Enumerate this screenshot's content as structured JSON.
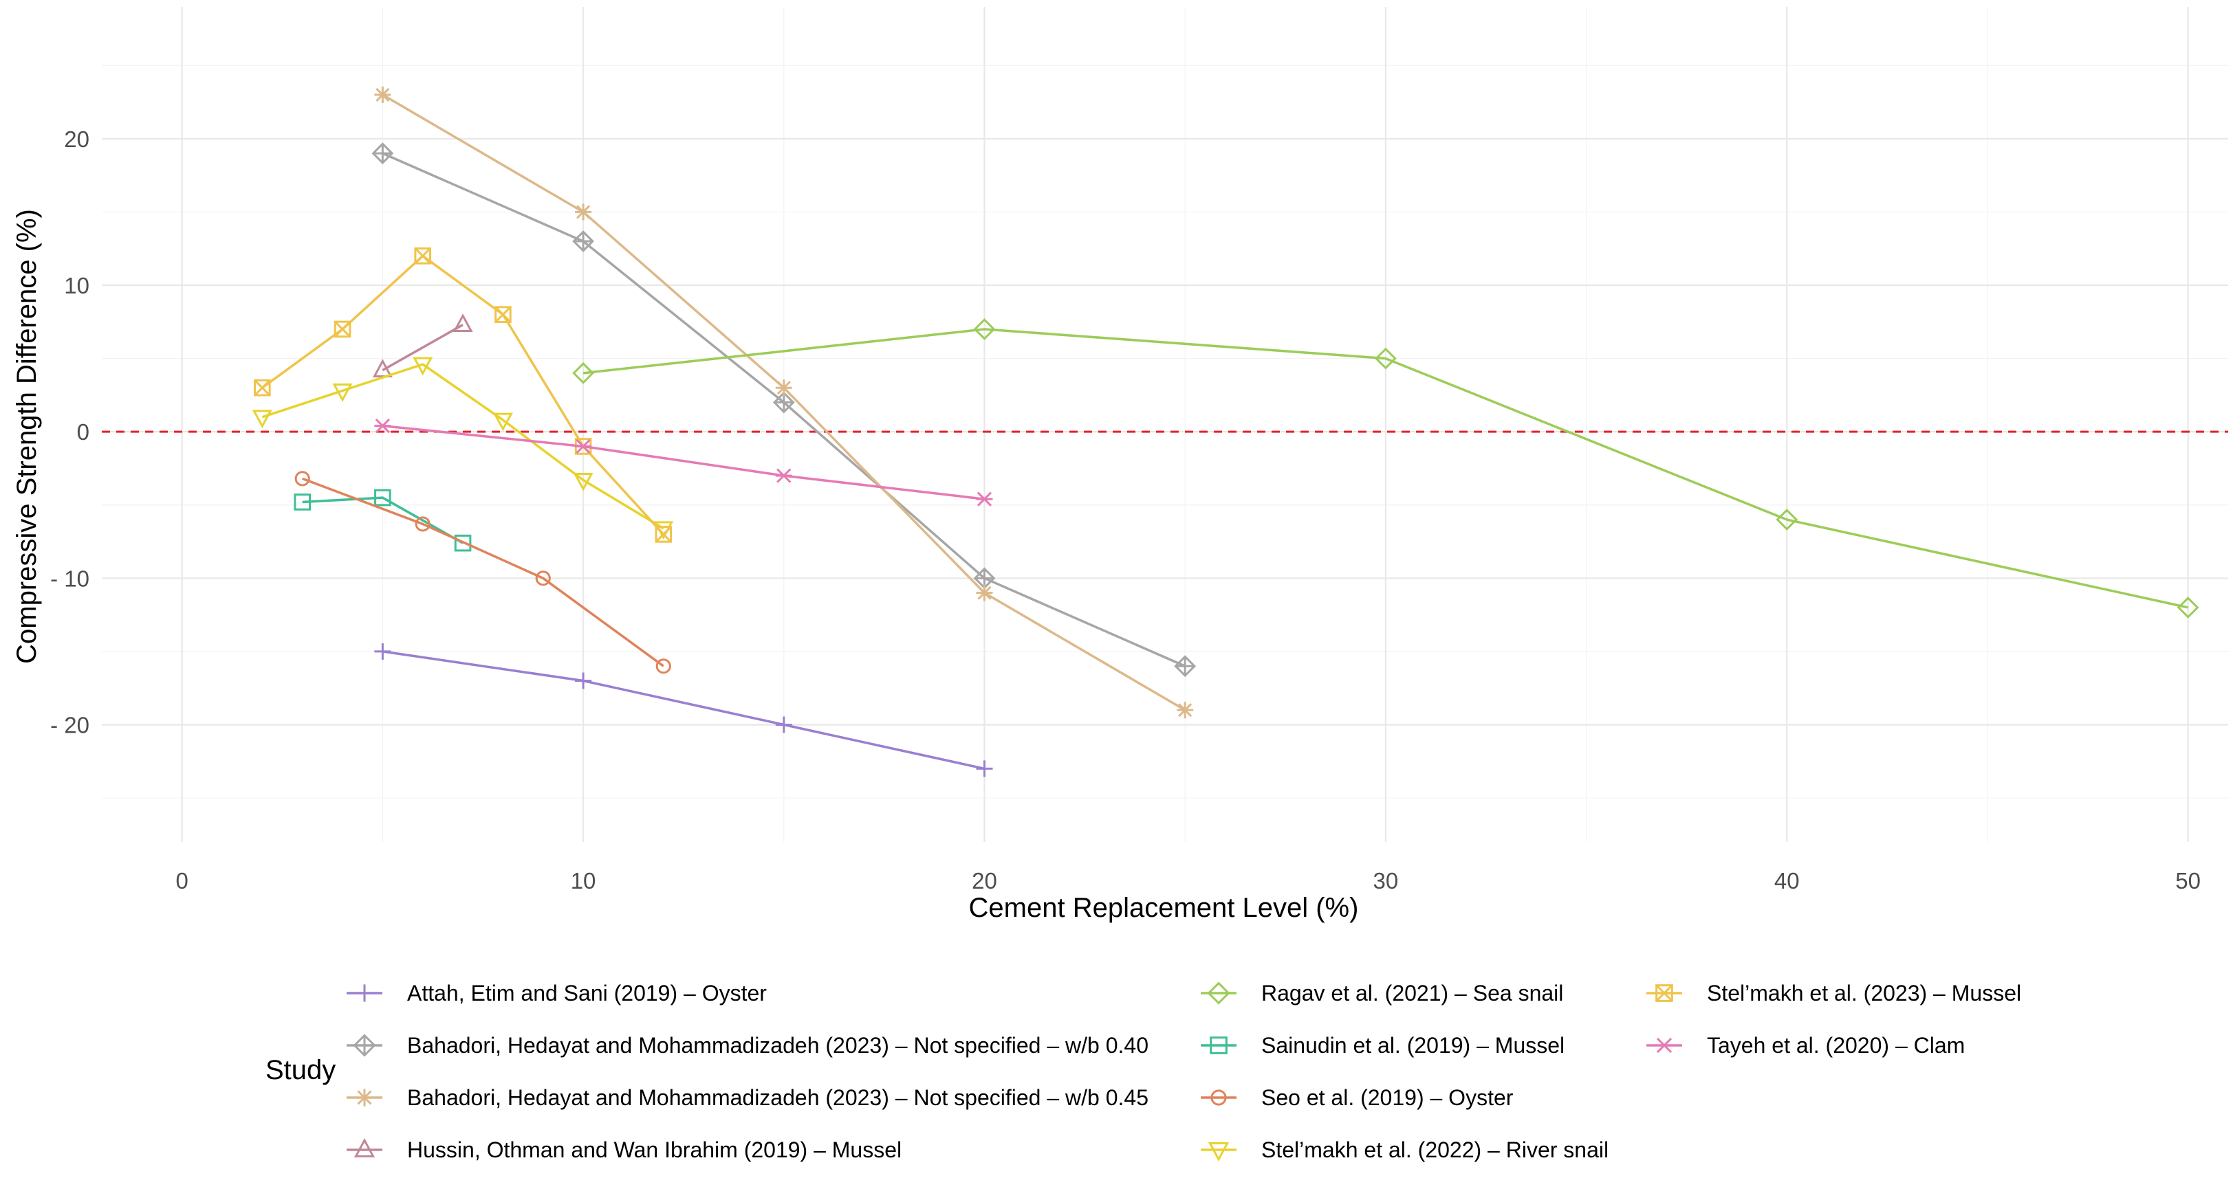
{
  "chart_data": {
    "type": "line",
    "xlabel": "Cement Replacement Level (%)",
    "ylabel": "Compressive Strength Difference (%)",
    "xlim": [
      -2,
      51
    ],
    "ylim": [
      -28,
      29
    ],
    "x_ticks": [
      0,
      10,
      20,
      30,
      40,
      50
    ],
    "x_tick_labels": [
      "0",
      "10",
      "20",
      "30",
      "40",
      "50"
    ],
    "y_ticks": [
      20,
      10,
      0,
      -10,
      -20
    ],
    "y_tick_labels": [
      "20",
      "10",
      "0",
      "- 10",
      "- 20"
    ],
    "grid": true,
    "reference_line": {
      "y": 0,
      "style": "dashed",
      "color": "#e8202a"
    },
    "legend_title": "Study",
    "legend_position": "bottom",
    "series": [
      {
        "name": "Attah, Etim and Sani (2019) – Oyster",
        "color": "#9a7fd0",
        "marker": "plus",
        "x": [
          5,
          10,
          15,
          20
        ],
        "y": [
          -15,
          -17,
          -20,
          -23
        ]
      },
      {
        "name": "Bahadori, Hedayat and Mohammadizadeh (2023) – Not specified – w/b 0.40",
        "color": "#a6a6a6",
        "marker": "diamond-plus",
        "x": [
          5,
          10,
          15,
          20,
          25
        ],
        "y": [
          19,
          13,
          2,
          -10,
          -16
        ]
      },
      {
        "name": "Bahadori, Hedayat and Mohammadizadeh (2023) – Not specified – w/b 0.45",
        "color": "#dcb98a",
        "marker": "asterisk",
        "x": [
          5,
          10,
          15,
          20,
          25
        ],
        "y": [
          23,
          15,
          3,
          -11,
          -19
        ]
      },
      {
        "name": "Hussin, Othman and Wan Ibrahim (2019) – Mussel",
        "color": "#c08896",
        "marker": "triangle",
        "x": [
          5,
          7
        ],
        "y": [
          4.2,
          7.3
        ]
      },
      {
        "name": "Ragav et al. (2021) – Sea snail",
        "color": "#9ccc58",
        "marker": "diamond",
        "x": [
          10,
          20,
          30,
          40,
          50
        ],
        "y": [
          4,
          7,
          5,
          -6,
          -12
        ]
      },
      {
        "name": "Sainudin et al. (2019) – Mussel",
        "color": "#3dbf96",
        "marker": "square",
        "x": [
          3,
          5,
          7
        ],
        "y": [
          -4.8,
          -4.5,
          -7.6
        ]
      },
      {
        "name": "Seo et al. (2019) – Oyster",
        "color": "#e0835a",
        "marker": "circle",
        "x": [
          3,
          6,
          9,
          12
        ],
        "y": [
          -3.2,
          -6.3,
          -10,
          -16
        ]
      },
      {
        "name": "Stel’makh et al. (2022) – River snail",
        "color": "#e6d32e",
        "marker": "triangle-down",
        "x": [
          2,
          4,
          6,
          8,
          10,
          12
        ],
        "y": [
          1,
          2.8,
          4.6,
          0.8,
          -3.3,
          -6.6
        ]
      },
      {
        "name": "Stel’makh et al. (2023) –  Mussel",
        "color": "#f0c34a",
        "marker": "square-cross",
        "x": [
          2,
          4,
          6,
          8,
          10,
          12
        ],
        "y": [
          3,
          7,
          12,
          8,
          -1,
          -7
        ]
      },
      {
        "name": "Tayeh et al. (2020) – Clam",
        "color": "#e57ab4",
        "marker": "star",
        "x": [
          5,
          10,
          15,
          20
        ],
        "y": [
          0.4,
          -1,
          -3,
          -4.6
        ]
      }
    ]
  }
}
